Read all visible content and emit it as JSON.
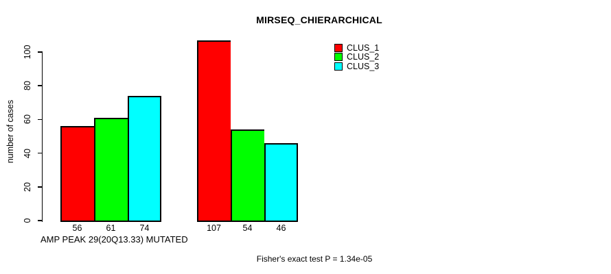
{
  "page": {
    "background_color": "#ffffff",
    "axis_color": "#000000",
    "text_color": "#000000"
  },
  "chart_data": {
    "type": "bar",
    "title": "MIRSEQ_CHIERARCHICAL",
    "ylabel": "number of cases",
    "xlabel": "AMP PEAK 29(20Q13.33) MUTATED",
    "footnote": "Fisher's exact test P = 1.34e-05",
    "yticks": [
      0,
      20,
      40,
      60,
      80,
      100
    ],
    "ylim": [
      0,
      107
    ],
    "grid": false,
    "legend_position": "top-right",
    "series_names": [
      "CLUS_1",
      "CLUS_2",
      "CLUS_3"
    ],
    "series_colors": [
      "#ff0000",
      "#00ff00",
      "#00ffff"
    ],
    "legend": {
      "entries": [
        {
          "label": "CLUS_1",
          "color": "#ff0000"
        },
        {
          "label": "CLUS_2",
          "color": "#00ff00"
        },
        {
          "label": "CLUS_3",
          "color": "#00ffff"
        }
      ]
    },
    "groups": [
      {
        "values": [
          56,
          61,
          74
        ],
        "bar_labels": [
          "56",
          "61",
          "74"
        ]
      },
      {
        "values": [
          107,
          54,
          46
        ],
        "bar_labels": [
          "107",
          "54",
          "46"
        ]
      }
    ]
  }
}
